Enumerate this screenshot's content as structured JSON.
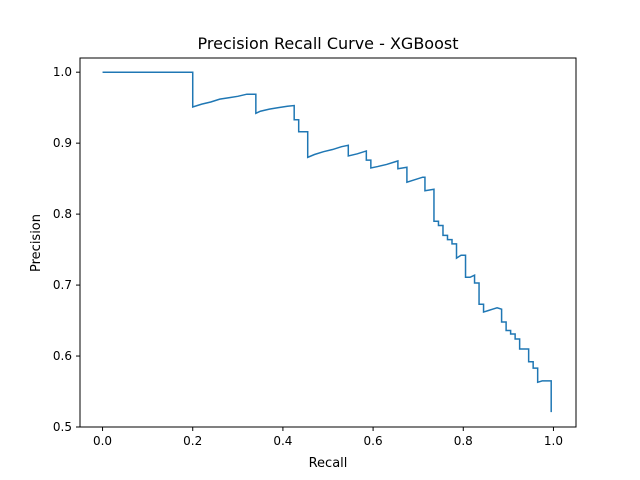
{
  "chart_data": {
    "type": "line",
    "title": "Precision Recall Curve - XGBoost",
    "xlabel": "Recall",
    "ylabel": "Precision",
    "xlim": [
      -0.05,
      1.05
    ],
    "ylim": [
      0.5,
      1.02
    ],
    "xticks": [
      "0.0",
      "0.2",
      "0.4",
      "0.6",
      "0.8",
      "1.0"
    ],
    "yticks": [
      "0.5",
      "0.6",
      "0.7",
      "0.8",
      "0.9",
      "1.0"
    ],
    "grid": false,
    "legend": "none",
    "line_color": "#1f77b4",
    "series": [
      {
        "step": "post",
        "points": [
          [
            0.0,
            1.0
          ],
          [
            0.2,
            1.0
          ],
          [
            0.2,
            0.951
          ],
          [
            0.22,
            0.955
          ],
          [
            0.24,
            0.958
          ],
          [
            0.26,
            0.962
          ],
          [
            0.28,
            0.964
          ],
          [
            0.3,
            0.966
          ],
          [
            0.32,
            0.969
          ],
          [
            0.34,
            0.969
          ],
          [
            0.34,
            0.942
          ],
          [
            0.35,
            0.945
          ],
          [
            0.37,
            0.948
          ],
          [
            0.39,
            0.95
          ],
          [
            0.41,
            0.952
          ],
          [
            0.425,
            0.953
          ],
          [
            0.425,
            0.933
          ],
          [
            0.435,
            0.933
          ],
          [
            0.435,
            0.916
          ],
          [
            0.455,
            0.916
          ],
          [
            0.455,
            0.88
          ],
          [
            0.47,
            0.884
          ],
          [
            0.49,
            0.888
          ],
          [
            0.51,
            0.891
          ],
          [
            0.53,
            0.895
          ],
          [
            0.545,
            0.897
          ],
          [
            0.545,
            0.882
          ],
          [
            0.565,
            0.885
          ],
          [
            0.585,
            0.889
          ],
          [
            0.585,
            0.876
          ],
          [
            0.595,
            0.876
          ],
          [
            0.595,
            0.865
          ],
          [
            0.61,
            0.867
          ],
          [
            0.63,
            0.87
          ],
          [
            0.65,
            0.874
          ],
          [
            0.655,
            0.875
          ],
          [
            0.655,
            0.864
          ],
          [
            0.675,
            0.866
          ],
          [
            0.675,
            0.845
          ],
          [
            0.69,
            0.848
          ],
          [
            0.71,
            0.852
          ],
          [
            0.715,
            0.852
          ],
          [
            0.715,
            0.833
          ],
          [
            0.735,
            0.835
          ],
          [
            0.735,
            0.79
          ],
          [
            0.745,
            0.79
          ],
          [
            0.745,
            0.784
          ],
          [
            0.755,
            0.784
          ],
          [
            0.755,
            0.77
          ],
          [
            0.765,
            0.77
          ],
          [
            0.765,
            0.764
          ],
          [
            0.775,
            0.764
          ],
          [
            0.775,
            0.758
          ],
          [
            0.785,
            0.758
          ],
          [
            0.785,
            0.738
          ],
          [
            0.795,
            0.742
          ],
          [
            0.805,
            0.742
          ],
          [
            0.805,
            0.711
          ],
          [
            0.815,
            0.711
          ],
          [
            0.825,
            0.714
          ],
          [
            0.825,
            0.703
          ],
          [
            0.835,
            0.703
          ],
          [
            0.835,
            0.673
          ],
          [
            0.845,
            0.673
          ],
          [
            0.845,
            0.662
          ],
          [
            0.855,
            0.664
          ],
          [
            0.865,
            0.666
          ],
          [
            0.875,
            0.668
          ],
          [
            0.885,
            0.666
          ],
          [
            0.885,
            0.648
          ],
          [
            0.895,
            0.648
          ],
          [
            0.895,
            0.636
          ],
          [
            0.905,
            0.636
          ],
          [
            0.905,
            0.631
          ],
          [
            0.915,
            0.631
          ],
          [
            0.915,
            0.624
          ],
          [
            0.925,
            0.624
          ],
          [
            0.925,
            0.61
          ],
          [
            0.935,
            0.61
          ],
          [
            0.945,
            0.61
          ],
          [
            0.945,
            0.592
          ],
          [
            0.955,
            0.592
          ],
          [
            0.955,
            0.583
          ],
          [
            0.965,
            0.583
          ],
          [
            0.965,
            0.563
          ],
          [
            0.975,
            0.565
          ],
          [
            0.995,
            0.565
          ],
          [
            0.995,
            0.521
          ]
        ]
      }
    ]
  }
}
